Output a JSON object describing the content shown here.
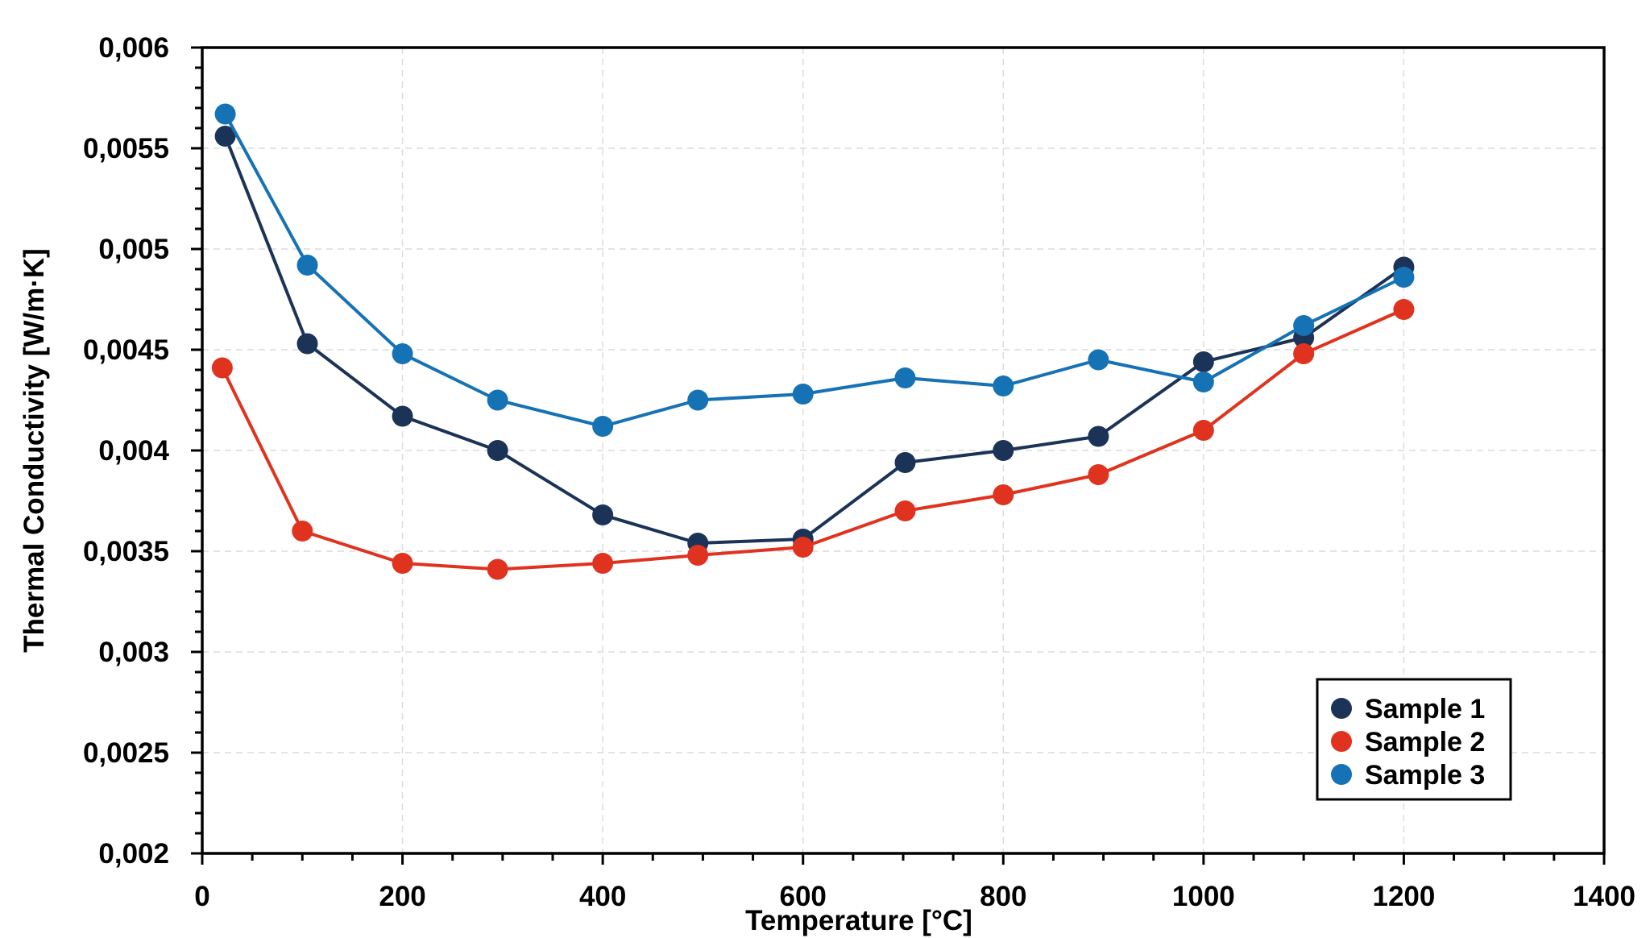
{
  "chart_data": {
    "type": "line",
    "title": "",
    "xlabel": "Temperature [°C]",
    "ylabel": "Thermal Conductivity [W/m·K]",
    "xlim": [
      0,
      1400
    ],
    "ylim": [
      0.002,
      0.006
    ],
    "xticks": [
      0,
      200,
      400,
      600,
      800,
      1000,
      1200,
      1400
    ],
    "xtick_labels": [
      "0",
      "200",
      "400",
      "600",
      "800",
      "1000",
      "1200",
      "1400"
    ],
    "yticks": [
      0.002,
      0.0025,
      0.003,
      0.0035,
      0.004,
      0.0045,
      0.005,
      0.0055,
      0.006
    ],
    "ytick_labels": [
      "0,002",
      "0,0025",
      "0,003",
      "0,0035",
      "0,004",
      "0,0045",
      "0,005",
      "0,0055",
      "0,006"
    ],
    "grid": true,
    "legend_position": "bottom-right",
    "series": [
      {
        "name": "Sample 1",
        "color": "#1b3357",
        "points": [
          [
            23,
            0.00556
          ],
          [
            105,
            0.00453
          ],
          [
            200,
            0.00417
          ],
          [
            295,
            0.004
          ],
          [
            400,
            0.00368
          ],
          [
            495,
            0.00354
          ],
          [
            600,
            0.00356
          ],
          [
            702,
            0.00394
          ],
          [
            800,
            0.004
          ],
          [
            895,
            0.00407
          ],
          [
            1000,
            0.00444
          ],
          [
            1100,
            0.00456
          ],
          [
            1200,
            0.00491
          ]
        ]
      },
      {
        "name": "Sample 2",
        "color": "#e0331f",
        "points": [
          [
            20,
            0.00441
          ],
          [
            100,
            0.0036
          ],
          [
            200,
            0.00344
          ],
          [
            295,
            0.00341
          ],
          [
            400,
            0.00344
          ],
          [
            495,
            0.00348
          ],
          [
            600,
            0.00352
          ],
          [
            702,
            0.0037
          ],
          [
            800,
            0.00378
          ],
          [
            895,
            0.00388
          ],
          [
            1000,
            0.0041
          ],
          [
            1100,
            0.00448
          ],
          [
            1200,
            0.0047
          ]
        ]
      },
      {
        "name": "Sample 3",
        "color": "#1572b5",
        "points": [
          [
            23,
            0.00567
          ],
          [
            105,
            0.00492
          ],
          [
            200,
            0.00448
          ],
          [
            295,
            0.00425
          ],
          [
            400,
            0.00412
          ],
          [
            495,
            0.00425
          ],
          [
            600,
            0.00428
          ],
          [
            702,
            0.00436
          ],
          [
            800,
            0.00432
          ],
          [
            895,
            0.00445
          ],
          [
            1000,
            0.00434
          ],
          [
            1100,
            0.00462
          ],
          [
            1200,
            0.00486
          ]
        ]
      }
    ]
  }
}
